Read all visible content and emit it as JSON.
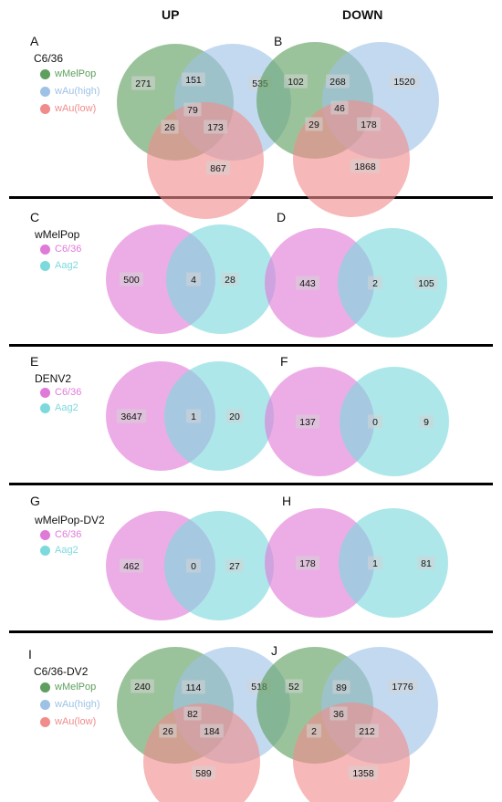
{
  "columns": {
    "up": "UP",
    "down": "DOWN"
  },
  "colors": {
    "wMelPop": "#5e9e5e",
    "wAu_high": "#9ec2e6",
    "wAu_low": "#f08c8c",
    "C6_36": "#e07ad8",
    "Aag2": "#7dd9dd",
    "label_bg": "#d3d3d3"
  },
  "rows": [
    {
      "title": "C6/36",
      "legend": [
        {
          "label": "wMelPop",
          "color": "#5e9e5e"
        },
        {
          "label": "wAu(high)",
          "color": "#9ec2e6"
        },
        {
          "label": "wAu(low)",
          "color": "#f08c8c"
        }
      ],
      "panels": [
        {
          "letter": "A",
          "type": "three",
          "values": {
            "a": "271",
            "ab": "151",
            "b": "535",
            "abc": "79",
            "ac": "26",
            "bc": "173",
            "c": "867"
          }
        },
        {
          "letter": "B",
          "type": "three",
          "values": {
            "a": "102",
            "ab": "268",
            "b": "1520",
            "abc": "46",
            "ac": "29",
            "bc": "178",
            "c": "1868"
          }
        }
      ]
    },
    {
      "title": "wMelPop",
      "legend": [
        {
          "label": "C6/36",
          "color": "#e07ad8"
        },
        {
          "label": "Aag2",
          "color": "#7dd9dd"
        }
      ],
      "panels": [
        {
          "letter": "C",
          "type": "two",
          "values": {
            "a": "500",
            "ab": "4",
            "b": "28"
          }
        },
        {
          "letter": "D",
          "type": "two",
          "values": {
            "a": "443",
            "ab": "2",
            "b": "105"
          }
        }
      ]
    },
    {
      "title": "DENV2",
      "legend": [
        {
          "label": "C6/36",
          "color": "#e07ad8"
        },
        {
          "label": "Aag2",
          "color": "#7dd9dd"
        }
      ],
      "panels": [
        {
          "letter": "E",
          "type": "two",
          "values": {
            "a": "3647",
            "ab": "1",
            "b": "20"
          }
        },
        {
          "letter": "F",
          "type": "two",
          "values": {
            "a": "137",
            "ab": "0",
            "b": "9"
          }
        }
      ]
    },
    {
      "title": "wMelPop-DV2",
      "legend": [
        {
          "label": "C6/36",
          "color": "#e07ad8"
        },
        {
          "label": "Aag2",
          "color": "#7dd9dd"
        }
      ],
      "panels": [
        {
          "letter": "G",
          "type": "two",
          "values": {
            "a": "462",
            "ab": "0",
            "b": "27"
          }
        },
        {
          "letter": "H",
          "type": "two",
          "values": {
            "a": "178",
            "ab": "1",
            "b": "81"
          }
        }
      ]
    },
    {
      "title": "C6/36-DV2",
      "legend": [
        {
          "label": "wMelPop",
          "color": "#5e9e5e"
        },
        {
          "label": "wAu(high)",
          "color": "#9ec2e6"
        },
        {
          "label": "wAu(low)",
          "color": "#f08c8c"
        }
      ],
      "panels": [
        {
          "letter": "I",
          "type": "three",
          "values": {
            "a": "240",
            "ab": "114",
            "b": "518",
            "abc": "82",
            "ac": "26",
            "bc": "184",
            "c": "589"
          }
        },
        {
          "letter": "J",
          "type": "three",
          "values": {
            "a": "52",
            "ab": "89",
            "b": "1776",
            "abc": "36",
            "ac": "2",
            "bc": "212",
            "c": "1358"
          }
        }
      ]
    }
  ]
}
